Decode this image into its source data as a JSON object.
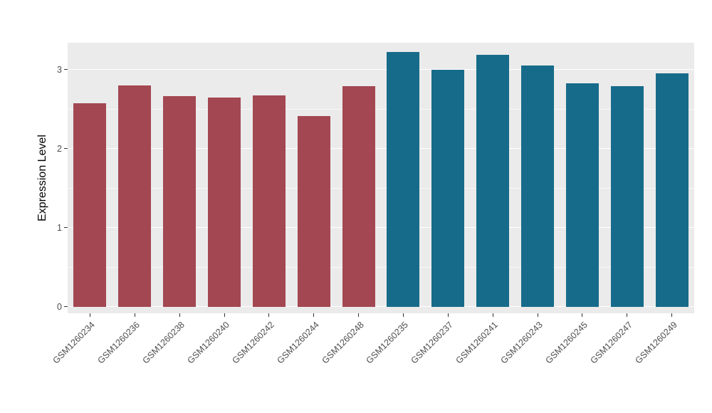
{
  "chart_data": {
    "type": "bar",
    "title": "",
    "xlabel": "",
    "ylabel": "Expression Level",
    "ylim": [
      -0.085,
      3.34
    ],
    "y_major_ticks": [
      0,
      1,
      2,
      3
    ],
    "y_minor_ticks": [
      0.5,
      1.5,
      2.5
    ],
    "legend": "none",
    "panel_bg": "#EBEBEB",
    "grid_color": "#FFFFFF",
    "tick_label_color": "#4D4D4D",
    "tick_mark_color": "#333333",
    "categories": [
      "GSM1260234",
      "GSM1260236",
      "GSM1260238",
      "GSM1260240",
      "GSM1260242",
      "GSM1260244",
      "GSM1260248",
      "GSM1260235",
      "GSM1260237",
      "GSM1260241",
      "GSM1260243",
      "GSM1260245",
      "GSM1260247",
      "GSM1260249"
    ],
    "values": [
      2.57,
      2.8,
      2.66,
      2.65,
      2.67,
      2.41,
      2.79,
      3.22,
      3.0,
      3.19,
      3.05,
      2.83,
      2.79,
      2.95
    ],
    "groups": [
      "group1",
      "group1",
      "group1",
      "group1",
      "group1",
      "group1",
      "group1",
      "group2",
      "group2",
      "group2",
      "group2",
      "group2",
      "group2",
      "group2"
    ],
    "group_colors": {
      "group1": "#A34752",
      "group2": "#176B8A"
    }
  }
}
